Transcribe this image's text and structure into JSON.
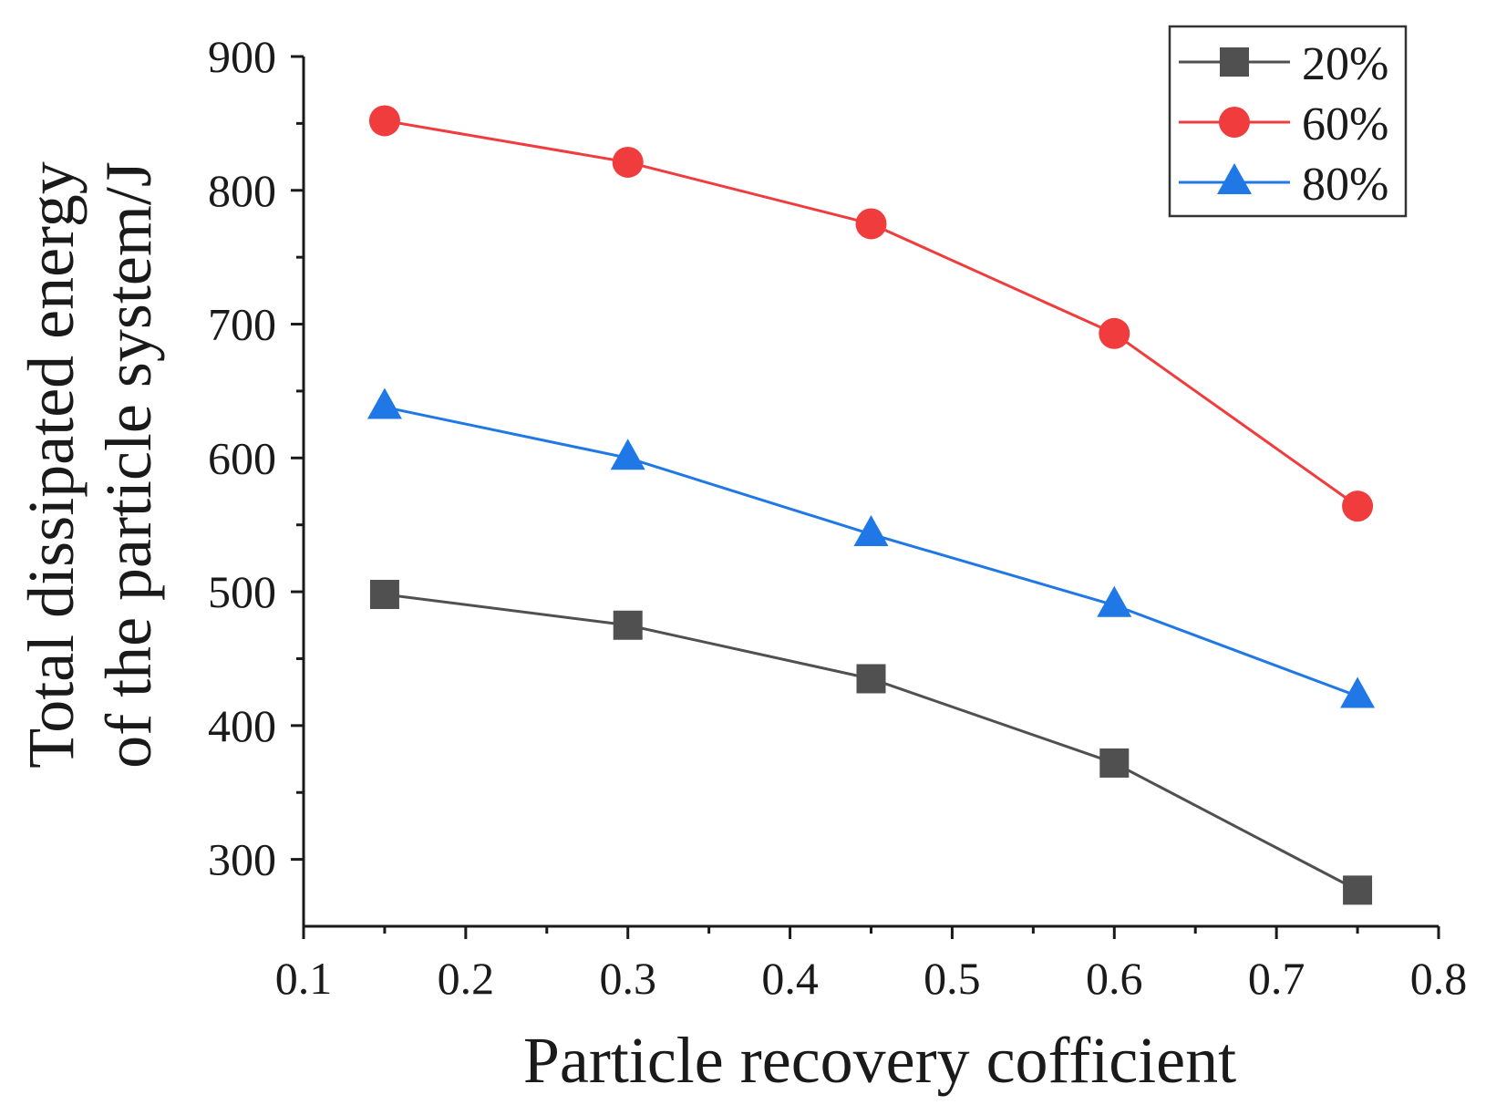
{
  "colors": {
    "axis": "#1a1a1a",
    "series_20": "#505050",
    "series_60": "#f03c3c",
    "series_80": "#1f78e6"
  },
  "chart_data": {
    "type": "line",
    "title": "",
    "xlabel": "Particle recovery cofficient",
    "ylabel_line1": "Total dissipated energy",
    "ylabel_line2": "of the particle system/J",
    "xlim": [
      0.1,
      0.8
    ],
    "ylim": [
      250,
      900
    ],
    "xticks": [
      0.1,
      0.2,
      0.3,
      0.4,
      0.5,
      0.6,
      0.7,
      0.8
    ],
    "xtick_labels": [
      "0.1",
      "0.2",
      "0.3",
      "0.4",
      "0.5",
      "0.6",
      "0.7",
      "0.8"
    ],
    "yticks": [
      300,
      400,
      500,
      600,
      700,
      800,
      900
    ],
    "ytick_labels": [
      "300",
      "400",
      "500",
      "600",
      "700",
      "800",
      "900"
    ],
    "grid": false,
    "legend_position": "top-right",
    "x": [
      0.15,
      0.3,
      0.45,
      0.6,
      0.75
    ],
    "series": [
      {
        "name": "20%",
        "marker": "square",
        "color_key": "series_20",
        "values": [
          498,
          475,
          435,
          372,
          277
        ]
      },
      {
        "name": "60%",
        "marker": "circle",
        "color_key": "series_60",
        "values": [
          852,
          821,
          775,
          693,
          564
        ]
      },
      {
        "name": "80%",
        "marker": "triangle",
        "color_key": "series_80",
        "values": [
          638,
          600,
          543,
          490,
          422
        ]
      }
    ]
  }
}
